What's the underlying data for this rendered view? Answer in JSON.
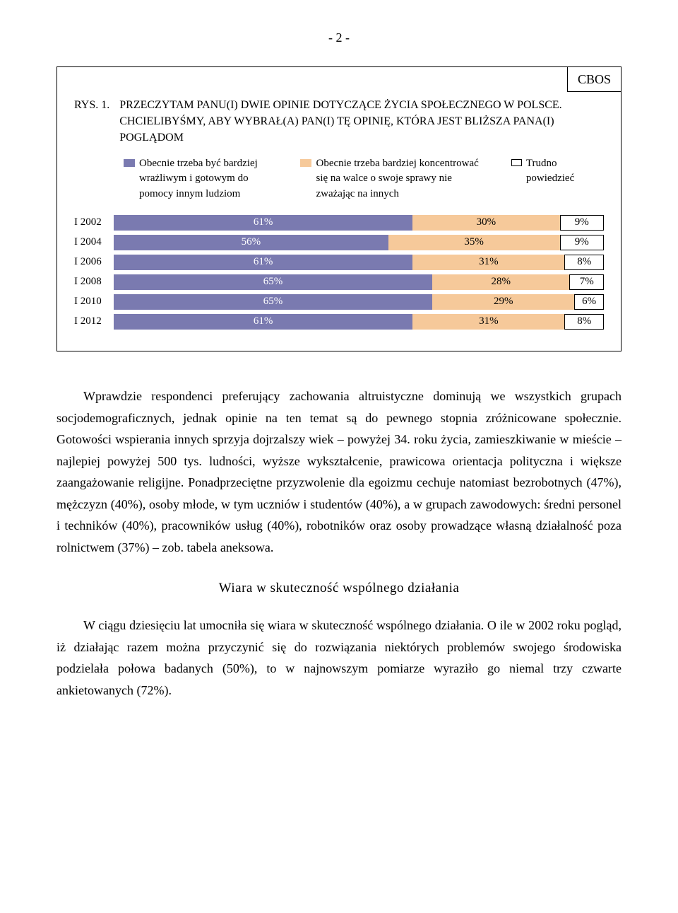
{
  "page_number": "- 2 -",
  "figure": {
    "cbos": "CBOS",
    "rys_label": "RYS. 1.",
    "title": "PRZECZYTAM PANU(I) DWIE OPINIE DOTYCZĄCE ŻYCIA SPOŁECZNEGO W POLSCE. CHCIELIBYŚMY, ABY WYBRAŁ(A) PAN(I) TĘ OPINIĘ, KTÓRA JEST BLIŻSZA PANA(I) POGLĄDOM",
    "legend": [
      {
        "color": "#7a7ab0",
        "label": "Obecnie trzeba być bardziej wrażliwym i gotowym do pomocy innym ludziom"
      },
      {
        "color": "#f6c99a",
        "label": "Obecnie trzeba bardziej koncentrować się na walce o swoje sprawy nie zważając na innych"
      },
      {
        "color": "#ffffff",
        "label": "Trudno powiedzieć"
      }
    ],
    "rows": [
      {
        "label": "I 2002",
        "segs": [
          {
            "v": 61,
            "t": "61%",
            "c": "#7a7ab0",
            "tc": "#ffffff"
          },
          {
            "v": 30,
            "t": "30%",
            "c": "#f6c99a",
            "tc": "#000000"
          },
          {
            "v": 9,
            "t": "9%",
            "c": "#ffffff",
            "tc": "#000000",
            "b": true
          }
        ]
      },
      {
        "label": "I 2004",
        "segs": [
          {
            "v": 56,
            "t": "56%",
            "c": "#7a7ab0",
            "tc": "#ffffff"
          },
          {
            "v": 35,
            "t": "35%",
            "c": "#f6c99a",
            "tc": "#000000"
          },
          {
            "v": 9,
            "t": "9%",
            "c": "#ffffff",
            "tc": "#000000",
            "b": true
          }
        ]
      },
      {
        "label": "I 2006",
        "segs": [
          {
            "v": 61,
            "t": "61%",
            "c": "#7a7ab0",
            "tc": "#ffffff"
          },
          {
            "v": 31,
            "t": "31%",
            "c": "#f6c99a",
            "tc": "#000000"
          },
          {
            "v": 8,
            "t": "8%",
            "c": "#ffffff",
            "tc": "#000000",
            "b": true
          }
        ]
      },
      {
        "label": "I 2008",
        "segs": [
          {
            "v": 65,
            "t": "65%",
            "c": "#7a7ab0",
            "tc": "#ffffff"
          },
          {
            "v": 28,
            "t": "28%",
            "c": "#f6c99a",
            "tc": "#000000"
          },
          {
            "v": 7,
            "t": "7%",
            "c": "#ffffff",
            "tc": "#000000",
            "b": true
          }
        ]
      },
      {
        "label": "I 2010",
        "segs": [
          {
            "v": 65,
            "t": "65%",
            "c": "#7a7ab0",
            "tc": "#ffffff"
          },
          {
            "v": 29,
            "t": "29%",
            "c": "#f6c99a",
            "tc": "#000000"
          },
          {
            "v": 6,
            "t": "6%",
            "c": "#ffffff",
            "tc": "#000000",
            "b": true
          }
        ]
      },
      {
        "label": "I 2012",
        "segs": [
          {
            "v": 61,
            "t": "61%",
            "c": "#7a7ab0",
            "tc": "#ffffff"
          },
          {
            "v": 31,
            "t": "31%",
            "c": "#f6c99a",
            "tc": "#000000"
          },
          {
            "v": 8,
            "t": "8%",
            "c": "#ffffff",
            "tc": "#000000",
            "b": true
          }
        ]
      }
    ]
  },
  "para1": "Wprawdzie respondenci preferujący zachowania altruistyczne dominują we wszystkich grupach socjodemograficznych, jednak opinie na ten temat są do pewnego stopnia zróżnicowane społecznie. Gotowości wspierania innych sprzyja dojrzalszy wiek – powyżej 34. roku życia, zamieszkiwanie w mieście – najlepiej powyżej 500 tys. ludności, wyższe wykształcenie, prawicowa orientacja polityczna i większe zaangażowanie religijne. Ponadprzeciętne przyzwolenie dla egoizmu cechuje natomiast bezrobotnych (47%), mężczyzn (40%), osoby młode, w tym uczniów i studentów (40%), a w grupach zawodowych: średni personel i techników (40%), pracowników usług (40%), robotników oraz osoby prowadzące własną działalność poza rolnictwem (37%) – zob. tabela aneksowa.",
  "heading": "Wiara w skuteczność wspólnego działania",
  "para2": "W ciągu dziesięciu lat umocniła się wiara w skuteczność wspólnego działania. O ile w 2002 roku pogląd, iż działając razem można przyczynić się do rozwiązania niektórych problemów swojego środowiska podzielała połowa badanych (50%), to w najnowszym pomiarze wyraziło go niemal trzy czwarte ankietowanych (72%)."
}
